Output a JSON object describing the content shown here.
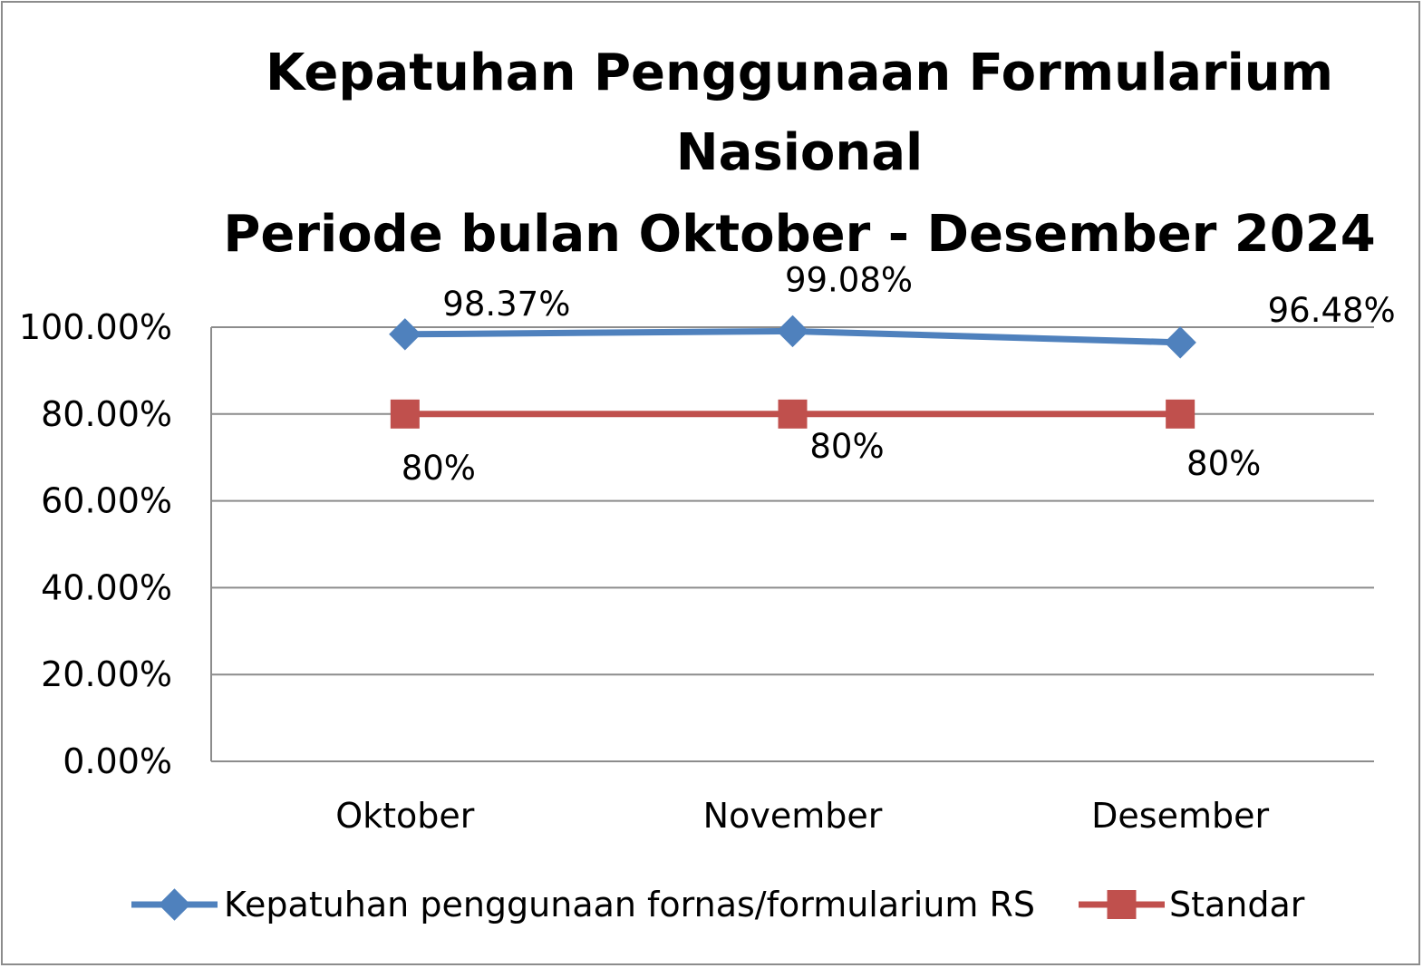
{
  "chart_data": {
    "type": "line",
    "title_lines": [
      "Kepatuhan Penggunaan Formularium",
      "Nasional",
      "Periode bulan Oktober - Desember 2024"
    ],
    "categories": [
      "Oktober",
      "November",
      "Desember"
    ],
    "y_ticks": [
      "0.00%",
      "20.00%",
      "40.00%",
      "60.00%",
      "80.00%",
      "100.00%"
    ],
    "ylim": [
      0,
      100
    ],
    "grid": true,
    "legend_position": "bottom",
    "series": [
      {
        "name": "Kepatuhan penggunaan fornas/formularium RS",
        "values": [
          98.37,
          99.08,
          96.48
        ],
        "labels": [
          "98.37%",
          "99.08%",
          "96.48%"
        ],
        "color": "#4f81bd",
        "marker": "diamond"
      },
      {
        "name": "Standar",
        "values": [
          80,
          80,
          80
        ],
        "labels": [
          "80%",
          "80%",
          "80%"
        ],
        "color": "#c0504d",
        "marker": "square"
      }
    ]
  }
}
